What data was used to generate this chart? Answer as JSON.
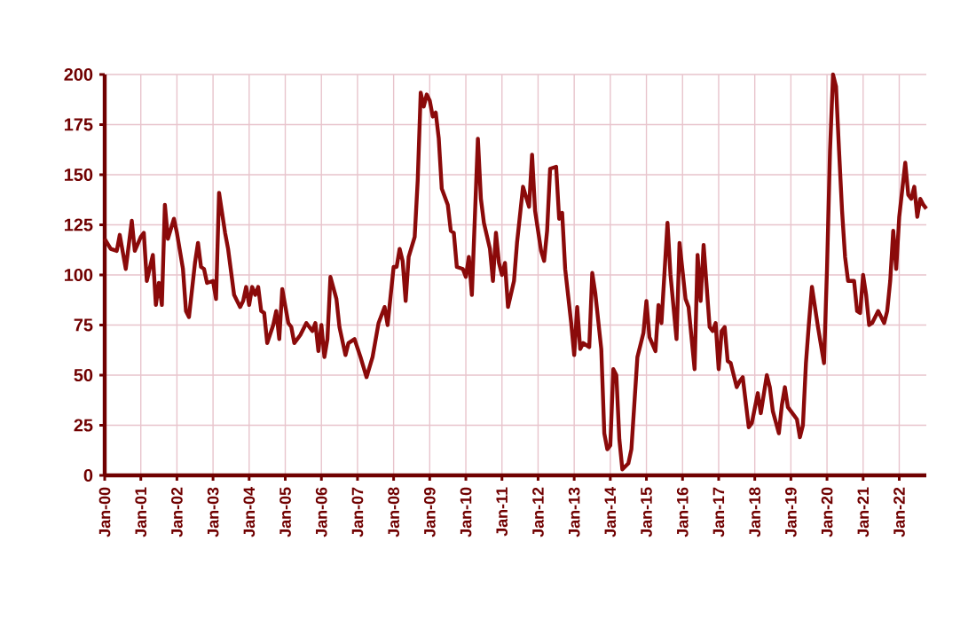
{
  "chart_data": {
    "type": "line",
    "color": "#8b0a0a",
    "grid": true,
    "marker": "none",
    "line_style": "solid",
    "xlim": [
      "2000-01",
      "2022-10"
    ],
    "ylim": [
      0,
      200
    ],
    "xticks": [
      {
        "value": "2000-01",
        "label": "Jan-00"
      },
      {
        "value": "2001-01",
        "label": "Jan-01"
      },
      {
        "value": "2002-01",
        "label": "Jan-02"
      },
      {
        "value": "2003-01",
        "label": "Jan-03"
      },
      {
        "value": "2004-01",
        "label": "Jan-04"
      },
      {
        "value": "2005-01",
        "label": "Jan-05"
      },
      {
        "value": "2006-01",
        "label": "Jan-06"
      },
      {
        "value": "2007-01",
        "label": "Jan-07"
      },
      {
        "value": "2008-01",
        "label": "Jan-08"
      },
      {
        "value": "2009-01",
        "label": "Jan-09"
      },
      {
        "value": "2010-01",
        "label": "Jan-10"
      },
      {
        "value": "2011-01",
        "label": "Jan-11"
      },
      {
        "value": "2012-01",
        "label": "Jan-12"
      },
      {
        "value": "2013-01",
        "label": "Jan-13"
      },
      {
        "value": "2014-01",
        "label": "Jan-14"
      },
      {
        "value": "2015-01",
        "label": "Jan-15"
      },
      {
        "value": "2016-01",
        "label": "Jan-16"
      },
      {
        "value": "2017-01",
        "label": "Jan-17"
      },
      {
        "value": "2018-01",
        "label": "Jan-18"
      },
      {
        "value": "2019-01",
        "label": "Jan-19"
      },
      {
        "value": "2020-01",
        "label": "Jan-20"
      },
      {
        "value": "2021-01",
        "label": "Jan-21"
      },
      {
        "value": "2022-01",
        "label": "Jan-22"
      }
    ],
    "yticks": [
      0,
      25,
      50,
      75,
      100,
      125,
      150,
      175,
      200
    ],
    "x": [
      "2000-01",
      "2000-03",
      "2000-05",
      "2000-06",
      "2000-08",
      "2000-10",
      "2000-11",
      "2001-01",
      "2001-02",
      "2001-03",
      "2001-05",
      "2001-06",
      "2001-07",
      "2001-08",
      "2001-09",
      "2001-10",
      "2001-12",
      "2002-01",
      "2002-03",
      "2002-04",
      "2002-05",
      "2002-07",
      "2002-08",
      "2002-09",
      "2002-10",
      "2002-11",
      "2003-01",
      "2003-02",
      "2003-03",
      "2003-05",
      "2003-06",
      "2003-08",
      "2003-10",
      "2003-11",
      "2003-12",
      "2004-01",
      "2004-02",
      "2004-03",
      "2004-04",
      "2004-05",
      "2004-06",
      "2004-07",
      "2004-09",
      "2004-10",
      "2004-11",
      "2004-12",
      "2005-02",
      "2005-03",
      "2005-04",
      "2005-06",
      "2005-08",
      "2005-10",
      "2005-11",
      "2005-12",
      "2006-01",
      "2006-02",
      "2006-03",
      "2006-04",
      "2006-06",
      "2006-07",
      "2006-09",
      "2006-10",
      "2006-12",
      "2007-02",
      "2007-04",
      "2007-06",
      "2007-08",
      "2007-10",
      "2007-11",
      "2008-01",
      "2008-02",
      "2008-03",
      "2008-04",
      "2008-05",
      "2008-06",
      "2008-08",
      "2008-09",
      "2008-10",
      "2008-11",
      "2008-12",
      "2009-01",
      "2009-02",
      "2009-03",
      "2009-04",
      "2009-05",
      "2009-07",
      "2009-08",
      "2009-09",
      "2009-10",
      "2009-12",
      "2010-01",
      "2010-02",
      "2010-03",
      "2010-05",
      "2010-06",
      "2010-07",
      "2010-09",
      "2010-10",
      "2010-11",
      "2010-12",
      "2011-01",
      "2011-02",
      "2011-03",
      "2011-05",
      "2011-06",
      "2011-08",
      "2011-10",
      "2011-11",
      "2011-12",
      "2012-02",
      "2012-03",
      "2012-04",
      "2012-05",
      "2012-07",
      "2012-08",
      "2012-09",
      "2012-10",
      "2012-12",
      "2013-01",
      "2013-02",
      "2013-03",
      "2013-04",
      "2013-06",
      "2013-07",
      "2013-08",
      "2013-10",
      "2013-11",
      "2013-12",
      "2014-01",
      "2014-02",
      "2014-03",
      "2014-04",
      "2014-05",
      "2014-07",
      "2014-08",
      "2014-10",
      "2014-12",
      "2015-01",
      "2015-02",
      "2015-04",
      "2015-05",
      "2015-06",
      "2015-08",
      "2015-09",
      "2015-11",
      "2015-12",
      "2016-02",
      "2016-03",
      "2016-05",
      "2016-06",
      "2016-07",
      "2016-08",
      "2016-10",
      "2016-11",
      "2016-12",
      "2017-01",
      "2017-02",
      "2017-03",
      "2017-04",
      "2017-05",
      "2017-07",
      "2017-08",
      "2017-09",
      "2017-11",
      "2017-12",
      "2018-02",
      "2018-03",
      "2018-05",
      "2018-06",
      "2018-07",
      "2018-09",
      "2018-10",
      "2018-11",
      "2018-12",
      "2019-01",
      "2019-03",
      "2019-04",
      "2019-05",
      "2019-06",
      "2019-07",
      "2019-08",
      "2019-10",
      "2019-11",
      "2019-12",
      "2020-01",
      "2020-02",
      "2020-03",
      "2020-04",
      "2020-05",
      "2020-06",
      "2020-07",
      "2020-08",
      "2020-10",
      "2020-11",
      "2020-12",
      "2021-01",
      "2021-02",
      "2021-03",
      "2021-04",
      "2021-06",
      "2021-07",
      "2021-08",
      "2021-09",
      "2021-10",
      "2021-11",
      "2021-12",
      "2022-01",
      "2022-03",
      "2022-04",
      "2022-05",
      "2022-06",
      "2022-07",
      "2022-08",
      "2022-09",
      "2022-10"
    ],
    "values": [
      118,
      113,
      112,
      120,
      103,
      127,
      112,
      119,
      121,
      97,
      110,
      85,
      96,
      85,
      135,
      118,
      128,
      121,
      103,
      82,
      79,
      106,
      116,
      104,
      103,
      96,
      97,
      88,
      141,
      121,
      113,
      90,
      84,
      87,
      94,
      85,
      94,
      90,
      94,
      82,
      81,
      66,
      75,
      82,
      68,
      93,
      76,
      74,
      66,
      70,
      76,
      72,
      76,
      62,
      75,
      59,
      68,
      99,
      88,
      74,
      60,
      66,
      68,
      59,
      49,
      59,
      76,
      84,
      75,
      104,
      104,
      113,
      107,
      87,
      109,
      119,
      147,
      191,
      184,
      190,
      187,
      179,
      181,
      168,
      143,
      135,
      122,
      121,
      104,
      103,
      99,
      109,
      90,
      168,
      138,
      126,
      113,
      97,
      121,
      106,
      100,
      106,
      84,
      97,
      116,
      144,
      134,
      160,
      132,
      112,
      107,
      122,
      153,
      154,
      128,
      131,
      103,
      76,
      60,
      84,
      63,
      66,
      64,
      101,
      91,
      63,
      21,
      13,
      15,
      53,
      50,
      18,
      3,
      6,
      13,
      59,
      71,
      87,
      69,
      62,
      85,
      76,
      126,
      100,
      68,
      116,
      88,
      84,
      53,
      110,
      87,
      115,
      74,
      72,
      76,
      53,
      72,
      74,
      57,
      56,
      44,
      47,
      49,
      24,
      26,
      41,
      31,
      50,
      44,
      32,
      21,
      35,
      44,
      34,
      32,
      28,
      19,
      25,
      56,
      76,
      94,
      74,
      65,
      56,
      103,
      162,
      200,
      194,
      162,
      132,
      109,
      97,
      97,
      82,
      81,
      100,
      90,
      75,
      76,
      82,
      79,
      76,
      82,
      97,
      122,
      103,
      129,
      156,
      140,
      138,
      144,
      129,
      138,
      135,
      133
    ]
  }
}
